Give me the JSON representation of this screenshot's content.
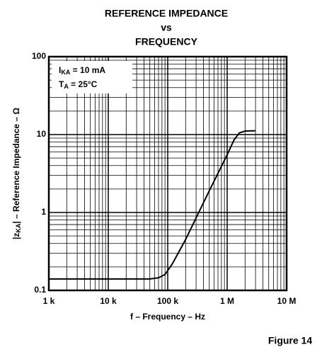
{
  "chart_data": {
    "type": "line",
    "title": [
      "REFERENCE IMPEDANCE",
      "vs",
      "FREQUENCY"
    ],
    "xlabel": "f – Frequency – Hz",
    "ylabel": {
      "prefix": "|z",
      "subscript": "KA",
      "suffix": "| – Reference Impedance – Ω"
    },
    "annotations": [
      {
        "symbol": "I",
        "subscript": "KA",
        "text": " = 10 mA"
      },
      {
        "symbol": "T",
        "subscript": "A",
        "text": " = 25°C"
      }
    ],
    "caption": "Figure 14",
    "x": [
      1000,
      10000,
      50000,
      70000,
      90000,
      120000,
      200000,
      500000,
      1000000,
      1300000,
      1600000,
      2000000,
      3000000
    ],
    "series": [
      {
        "name": "Reference Impedance",
        "color": "#000000",
        "values": [
          0.14,
          0.14,
          0.14,
          0.145,
          0.16,
          0.22,
          0.45,
          1.9,
          5.5,
          8.5,
          10.5,
          11.1,
          11.2
        ]
      }
    ],
    "xscale": "log",
    "yscale": "log",
    "xlim": [
      1000,
      10000000
    ],
    "ylim": [
      0.1,
      100
    ],
    "xticks": [
      {
        "value": 1000,
        "label": "1 k"
      },
      {
        "value": 10000,
        "label": "10 k"
      },
      {
        "value": 100000,
        "label": "100 k"
      },
      {
        "value": 1000000,
        "label": "1 M"
      },
      {
        "value": 10000000,
        "label": "10 M"
      }
    ],
    "yticks": [
      0.1,
      1,
      10,
      100
    ],
    "grid": true
  }
}
